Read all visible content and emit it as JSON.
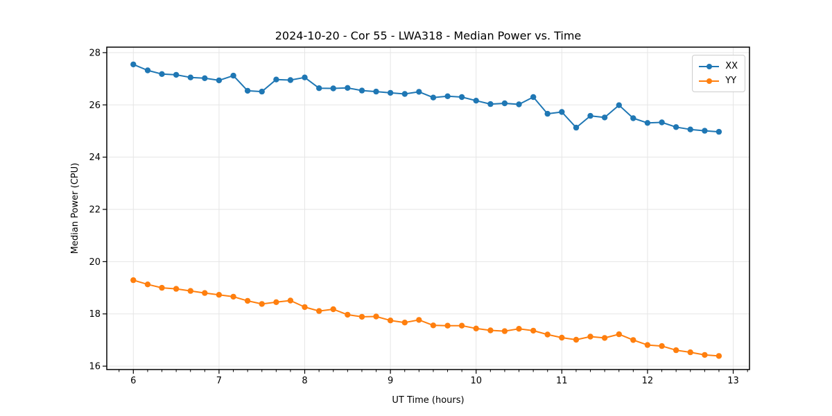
{
  "chart_data": {
    "type": "line",
    "title": "2024-10-20 - Cor 55 - LWA318 - Median Power vs. Time",
    "xlabel": "UT Time (hours)",
    "ylabel": "Median Power (CPU)",
    "xlim": [
      5.69,
      13.19
    ],
    "ylim": [
      15.87,
      28.21
    ],
    "x_ticks": [
      6,
      7,
      8,
      9,
      10,
      11,
      12,
      13
    ],
    "y_ticks": [
      16,
      18,
      20,
      22,
      24,
      26,
      28
    ],
    "x_minor_step": 0.16667,
    "grid": true,
    "grid_color": "#e5e5e5",
    "legend_position": "upper right",
    "x": [
      6.0,
      6.167,
      6.333,
      6.5,
      6.667,
      6.833,
      7.0,
      7.167,
      7.333,
      7.5,
      7.667,
      7.833,
      8.0,
      8.167,
      8.333,
      8.5,
      8.667,
      8.833,
      9.0,
      9.167,
      9.333,
      9.5,
      9.667,
      9.833,
      10.0,
      10.167,
      10.333,
      10.5,
      10.667,
      10.833,
      11.0,
      11.167,
      11.333,
      11.5,
      11.667,
      11.833,
      12.0,
      12.167,
      12.333,
      12.5,
      12.667,
      12.833
    ],
    "series": [
      {
        "name": "XX",
        "color": "#1f77b4",
        "values": [
          27.55,
          27.32,
          27.18,
          27.15,
          27.05,
          27.02,
          26.94,
          27.12,
          26.54,
          26.51,
          26.97,
          26.95,
          27.05,
          26.64,
          26.63,
          26.65,
          26.55,
          26.51,
          26.46,
          26.42,
          26.5,
          26.28,
          26.33,
          26.3,
          26.16,
          26.03,
          26.06,
          26.02,
          26.3,
          25.66,
          25.73,
          25.13,
          25.58,
          25.52,
          25.99,
          25.49,
          25.31,
          25.33,
          25.15,
          25.06,
          25.01,
          24.97
        ]
      },
      {
        "name": "YY",
        "color": "#ff7f0e",
        "values": [
          19.29,
          19.13,
          19.0,
          18.96,
          18.88,
          18.8,
          18.73,
          18.66,
          18.5,
          18.38,
          18.45,
          18.51,
          18.26,
          18.11,
          18.18,
          17.97,
          17.89,
          17.9,
          17.75,
          17.67,
          17.77,
          17.56,
          17.55,
          17.55,
          17.44,
          17.37,
          17.34,
          17.43,
          17.36,
          17.21,
          17.09,
          17.01,
          17.13,
          17.08,
          17.22,
          17.0,
          16.81,
          16.77,
          16.61,
          16.53,
          16.43,
          16.39
        ]
      }
    ]
  },
  "legend": {
    "items": [
      {
        "label": "XX",
        "color": "#1f77b4"
      },
      {
        "label": "YY",
        "color": "#ff7f0e"
      }
    ]
  }
}
